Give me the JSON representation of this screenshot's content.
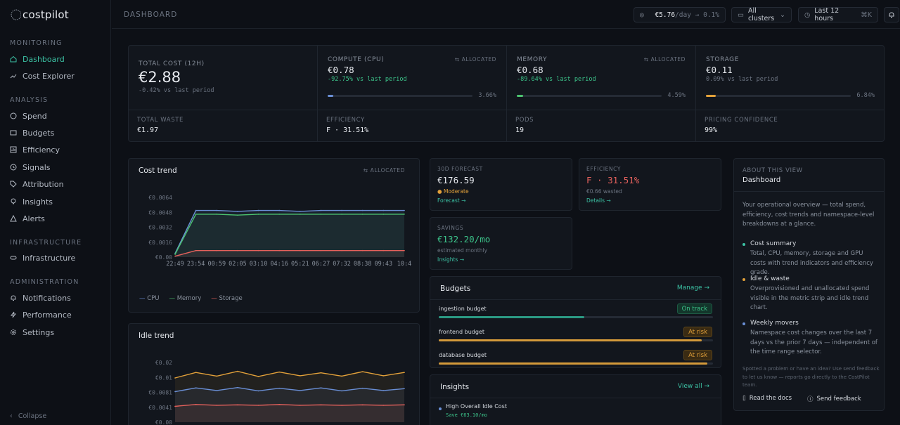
{
  "sidebar": {
    "logo": "costpilot",
    "sections": [
      "MONITORING",
      "ANALYSIS",
      "INFRASTRUCTURE",
      "ADMINISTRATION"
    ],
    "items": [
      {
        "label": "Dashboard",
        "icon": "home-icon"
      },
      {
        "label": "Cost Explorer",
        "icon": "trend-icon"
      },
      {
        "label": "Spend",
        "icon": "spend-icon"
      },
      {
        "label": "Budgets",
        "icon": "budget-icon"
      },
      {
        "label": "Efficiency",
        "icon": "chart-icon"
      },
      {
        "label": "Signals",
        "icon": "signal-icon"
      },
      {
        "label": "Attribution",
        "icon": "tag-icon"
      },
      {
        "label": "Insights",
        "icon": "bulb-icon"
      },
      {
        "label": "Alerts",
        "icon": "alert-icon"
      },
      {
        "label": "Infrastructure",
        "icon": "server-icon"
      },
      {
        "label": "Notifications",
        "icon": "bell-icon"
      },
      {
        "label": "Performance",
        "icon": "bolt-icon"
      },
      {
        "label": "Settings",
        "icon": "gear-icon"
      }
    ],
    "collapse": "Collapse"
  },
  "topbar": {
    "title": "DASHBOARD",
    "rate_value": "€5.76",
    "rate_unit": "/day",
    "rate_change": "→ 0.1%",
    "cluster": "All clusters",
    "range": "Last 12 hours",
    "shortcut": "⌘K"
  },
  "kpis": [
    {
      "title": "TOTAL COST (12H)",
      "value": "€2.88",
      "delta": "-0.42% vs last period",
      "alloc": ""
    },
    {
      "title": "COMPUTE (CPU)",
      "value": "€0.78",
      "delta": "-92.75% vs last period",
      "alloc": "ALLOCATED",
      "pct": "3.66%",
      "fill": 0.0366
    },
    {
      "title": "MEMORY",
      "value": "€0.68",
      "delta": "-89.64% vs last period",
      "alloc": "ALLOCATED",
      "pct": "4.59%",
      "fill": 0.0459
    },
    {
      "title": "STORAGE",
      "value": "€0.11",
      "delta": "0.09% vs last period",
      "alloc": "",
      "pct": "6.84%",
      "fill": 0.0684
    }
  ],
  "strip": [
    {
      "title": "TOTAL WASTE",
      "value": "€1.97"
    },
    {
      "title": "EFFICIENCY",
      "value": "F · 31.51%"
    },
    {
      "title": "PODS",
      "value": "19"
    },
    {
      "title": "PRICING CONFIDENCE",
      "value": "99%"
    }
  ],
  "cost_trend": {
    "title": "Cost trend",
    "alloc": "ALLOCATED",
    "legend": [
      "CPU",
      "Memory",
      "Storage"
    ]
  },
  "idle_trend": {
    "title": "Idle trend"
  },
  "forecast": {
    "label": "30D FORECAST",
    "value": "€176.59",
    "status": "Moderate",
    "link": "Forecast →"
  },
  "efficiency_card": {
    "label": "EFFICIENCY",
    "value": "F · 31.51%",
    "sub": "€0.66 wasted",
    "link": "Details →"
  },
  "savings": {
    "label": "SAVINGS",
    "value": "€132.20/mo",
    "sub": "estimated monthly",
    "link": "Insights →"
  },
  "budgets": {
    "title": "Budgets",
    "manage": "Manage →",
    "items": [
      {
        "name": "ingestion budget",
        "status": "On track",
        "fill": 0.53
      },
      {
        "name": "frontend budget",
        "status": "At risk",
        "fill": 0.96
      },
      {
        "name": "database budget",
        "status": "At risk",
        "fill": 0.98
      }
    ]
  },
  "insights": {
    "title": "Insights",
    "view_all": "View all →",
    "items": [
      {
        "title": "High Overall Idle Cost",
        "save": "Save €63.10/mo"
      }
    ]
  },
  "about": {
    "label": "ABOUT THIS VIEW",
    "title": "Dashboard",
    "intro": "Your operational overview — total spend, efficiency, cost trends and namespace-level breakdowns at a glance.",
    "points": [
      {
        "h": "Cost summary",
        "p": "Total, CPU, memory, storage and GPU costs with trend indicators and efficiency grade."
      },
      {
        "h": "Idle & waste",
        "p": "Overprovisioned and unallocated spend visible in the metric strip and idle trend chart."
      },
      {
        "h": "Weekly movers",
        "p": "Namespace cost changes over the last 7 days vs the prior 7 days — independent of the time range selector."
      }
    ],
    "feedback_note": "Spotted a problem or have an idea? Use send feedback to let us know — reports go directly to the CostPilot team.",
    "docs": "Read the docs",
    "feedback": "Send feedback"
  },
  "colors": {
    "accent": "#3cc3a5",
    "cpu": "#6a8fd6",
    "memory": "#4cc36f",
    "storage": "#e5615c",
    "idle": "#e3a13a"
  },
  "chart_data": [
    {
      "type": "line",
      "title": "Cost trend",
      "x": [
        "22:49",
        "23:54",
        "00:59",
        "02:05",
        "03:10",
        "04:16",
        "05:21",
        "06:27",
        "07:32",
        "08:38",
        "09:43",
        "10:4"
      ],
      "yticks": [
        "€0.0064",
        "€0.0048",
        "€0.0032",
        "€0.0016",
        "€0.00"
      ],
      "ylim": [
        0,
        0.0064
      ],
      "series": [
        {
          "name": "CPU",
          "values": [
            0.0004,
            0.005,
            0.005,
            0.0049,
            0.005,
            0.005,
            0.0049,
            0.005,
            0.005,
            0.005,
            0.005,
            0.005
          ]
        },
        {
          "name": "Memory",
          "values": [
            0.0003,
            0.0046,
            0.0046,
            0.0045,
            0.0046,
            0.0046,
            0.0046,
            0.0046,
            0.0046,
            0.0046,
            0.0046,
            0.0046
          ]
        },
        {
          "name": "Storage",
          "values": [
            0.0001,
            0.0007,
            0.0007,
            0.0007,
            0.0007,
            0.0007,
            0.0007,
            0.0007,
            0.0007,
            0.0007,
            0.0007,
            0.0007
          ]
        }
      ]
    },
    {
      "type": "line",
      "title": "Idle trend",
      "yticks": [
        "€0.02",
        "€0.01",
        "€0.0081",
        "€0.0041",
        "€0.00"
      ],
      "ylim": [
        0,
        0.0162
      ],
      "series": [
        {
          "name": "",
          "values": [
            0.012,
            0.0135,
            0.0125,
            0.0138,
            0.0124,
            0.0136,
            0.0126,
            0.0134,
            0.0125,
            0.0137,
            0.0126,
            0.0135
          ]
        },
        {
          "name": "",
          "values": [
            0.0083,
            0.0093,
            0.0086,
            0.0094,
            0.0085,
            0.0092,
            0.0086,
            0.0093,
            0.0085,
            0.0092,
            0.0086,
            0.0091
          ]
        },
        {
          "name": "",
          "values": [
            0.0043,
            0.0048,
            0.0046,
            0.0047,
            0.0046,
            0.0048,
            0.0046,
            0.0047,
            0.0046,
            0.0047,
            0.0046,
            0.0047
          ]
        }
      ]
    }
  ]
}
